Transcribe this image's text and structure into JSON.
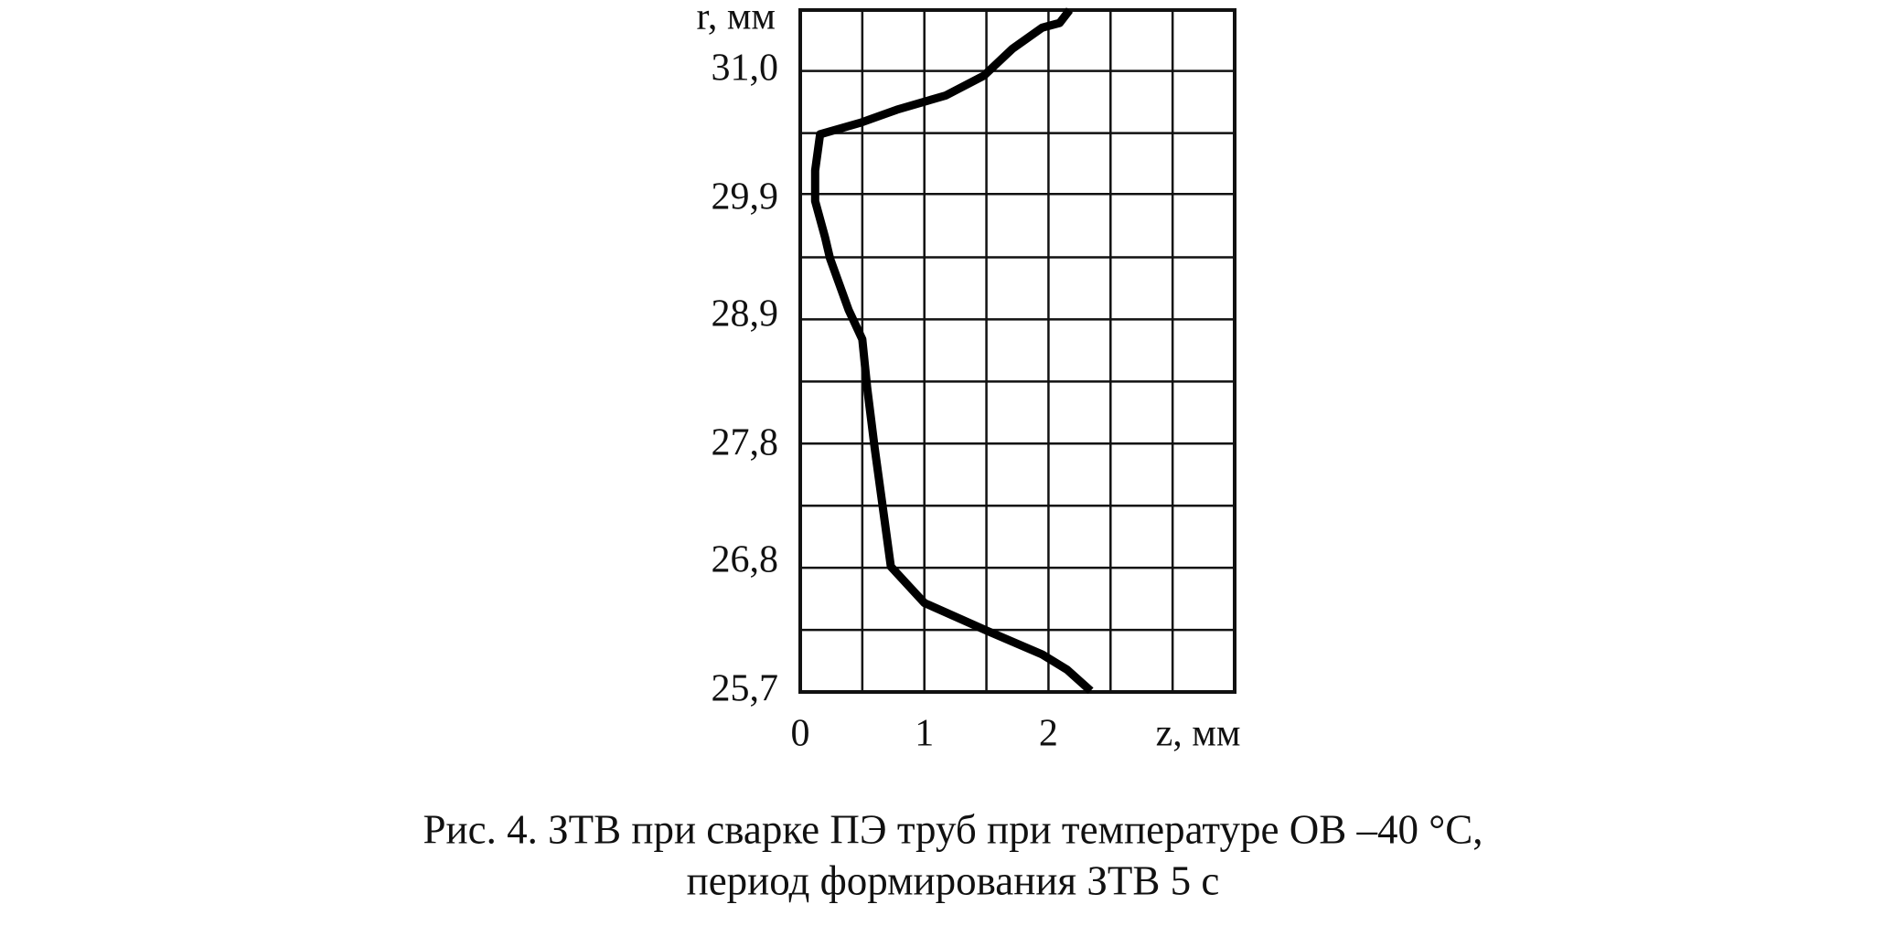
{
  "chart_data": {
    "type": "line",
    "y_label": "r, мм",
    "x_label": "z, мм",
    "caption": [
      "Рис. 4. ЗТВ при сварке ПЭ труб при температуре ОВ –40 °С,",
      "период формирования ЗТВ 5 с"
    ],
    "x": [
      2.34,
      2.15,
      1.95,
      1.51,
      1.0,
      0.73,
      0.68,
      0.6,
      0.54,
      0.5,
      0.39,
      0.24,
      0.2,
      0.12,
      0.12,
      0.16,
      0.49,
      0.78,
      1.17,
      1.48,
      1.71,
      1.95,
      2.09,
      2.17
    ],
    "series": [
      {
        "color": "#000000",
        "values": [
          25.71,
          25.89,
          26.02,
          26.22,
          26.46,
          26.77,
          27.16,
          27.78,
          28.29,
          28.71,
          28.96,
          29.4,
          29.58,
          29.89,
          30.15,
          30.46,
          30.56,
          30.67,
          30.79,
          30.96,
          31.19,
          31.37,
          31.41,
          31.52
        ]
      }
    ],
    "xlim": [
      0,
      3.5
    ],
    "ylim": [
      25.7,
      31.52
    ],
    "xticks": [
      0,
      1,
      2
    ],
    "yticks": [
      {
        "value": 25.7,
        "label": "25,7"
      },
      {
        "value": 26.8,
        "label": "26,8"
      },
      {
        "value": 27.8,
        "label": "27,8"
      },
      {
        "value": 28.9,
        "label": "28,9"
      },
      {
        "value": 29.9,
        "label": "29,9"
      },
      {
        "value": 31.0,
        "label": "31,0"
      }
    ],
    "xgrid": [
      0,
      0.5,
      1,
      1.5,
      2,
      2.5,
      3,
      3.5
    ],
    "ygrid": [
      25.7,
      26.23,
      26.76,
      27.29,
      27.82,
      28.35,
      28.88,
      29.41,
      29.95,
      30.47,
      31.0,
      31.52
    ],
    "grid": true
  }
}
